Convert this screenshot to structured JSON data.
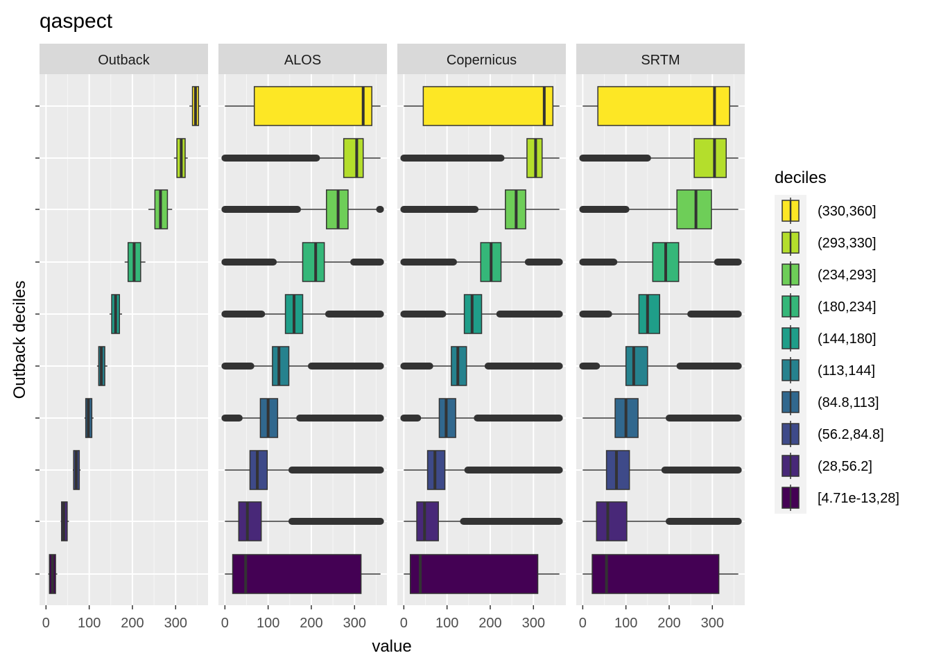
{
  "chart_data": {
    "type": "boxplot",
    "title": "qaspect",
    "xlabel": "value",
    "ylabel": "Outback deciles",
    "xlim": [
      -15,
      375
    ],
    "x_ticks": [
      0,
      100,
      200,
      300
    ],
    "legend": {
      "title": "deciles",
      "position": "right",
      "entries": [
        "(330,360]",
        "(293,330]",
        "(234,293]",
        "(180,234]",
        "(144,180]",
        "(113,144]",
        "(84.8,113]",
        "(56.2,84.8]",
        "(28,56.2]",
        "[4.71e-13,28]"
      ]
    },
    "deciles": [
      "[4.71e-13,28]",
      "(28,56.2]",
      "(56.2,84.8]",
      "(84.8,113]",
      "(113,144]",
      "(144,180]",
      "(180,234]",
      "(234,293]",
      "(293,330]",
      "(330,360]"
    ],
    "colors": [
      "#440154",
      "#482878",
      "#3E4A89",
      "#31688E",
      "#26828E",
      "#1F9E89",
      "#35B779",
      "#6ECE58",
      "#B4DE2C",
      "#FDE725"
    ],
    "panels": [
      {
        "name": "Outback",
        "boxes": [
          {
            "wlo": 5,
            "q1": 8,
            "med": 15,
            "q3": 22,
            "whi": 26
          },
          {
            "wlo": 34,
            "q1": 36,
            "med": 41,
            "q3": 49,
            "whi": 53
          },
          {
            "wlo": 62,
            "q1": 64,
            "med": 70,
            "q3": 77,
            "whi": 80
          },
          {
            "wlo": 89,
            "q1": 92,
            "med": 98,
            "q3": 106,
            "whi": 110
          },
          {
            "wlo": 118,
            "q1": 122,
            "med": 128,
            "q3": 136,
            "whi": 142
          },
          {
            "wlo": 147,
            "q1": 152,
            "med": 161,
            "q3": 170,
            "whi": 176
          },
          {
            "wlo": 182,
            "q1": 190,
            "med": 204,
            "q3": 219,
            "whi": 230
          },
          {
            "wlo": 237,
            "q1": 252,
            "med": 265,
            "q3": 281,
            "whi": 292
          },
          {
            "wlo": 296,
            "q1": 303,
            "med": 313,
            "q3": 322,
            "whi": 328
          },
          {
            "wlo": 332,
            "q1": 339,
            "med": 346,
            "q3": 353,
            "whi": 358
          }
        ]
      },
      {
        "name": "ALOS",
        "boxes": [
          {
            "wlo": 0,
            "q1": 18,
            "med": 48,
            "q3": 315,
            "whi": 360,
            "out_lo": [],
            "out_hi": []
          },
          {
            "wlo": 0,
            "q1": 32,
            "med": 52,
            "q3": 84,
            "whi": 155,
            "out_lo": [],
            "out_hi": [
              155,
              360
            ]
          },
          {
            "wlo": 0,
            "q1": 58,
            "med": 75,
            "q3": 98,
            "whi": 155,
            "out_lo": [],
            "out_hi": [
              155,
              360
            ]
          },
          {
            "wlo": 40,
            "q1": 82,
            "med": 100,
            "q3": 122,
            "whi": 173,
            "out_lo": [
              0,
              33
            ],
            "out_hi": [
              173,
              360
            ]
          },
          {
            "wlo": 60,
            "q1": 110,
            "med": 125,
            "q3": 148,
            "whi": 200,
            "out_lo": [
              0,
              60
            ],
            "out_hi": [
              200,
              360
            ]
          },
          {
            "wlo": 85,
            "q1": 140,
            "med": 160,
            "q3": 180,
            "whi": 240,
            "out_lo": [
              0,
              85
            ],
            "out_hi": [
              240,
              360
            ]
          },
          {
            "wlo": 115,
            "q1": 180,
            "med": 210,
            "q3": 230,
            "whi": 298,
            "out_lo": [
              0,
              112
            ],
            "out_hi": [
              298,
              360
            ]
          },
          {
            "wlo": 170,
            "q1": 235,
            "med": 262,
            "q3": 285,
            "whi": 355,
            "out_lo": [
              0,
              168
            ],
            "out_hi": [
              358,
              360
            ]
          },
          {
            "wlo": 210,
            "q1": 275,
            "med": 305,
            "q3": 320,
            "whi": 360,
            "out_lo": [
              0,
              212
            ],
            "out_hi": []
          },
          {
            "wlo": 0,
            "q1": 68,
            "med": 320,
            "q3": 340,
            "whi": 360,
            "out_lo": [],
            "out_hi": []
          }
        ]
      },
      {
        "name": "Copernicus",
        "boxes": [
          {
            "wlo": 0,
            "q1": 15,
            "med": 38,
            "q3": 310,
            "whi": 360,
            "out_lo": [],
            "out_hi": []
          },
          {
            "wlo": 0,
            "q1": 30,
            "med": 48,
            "q3": 80,
            "whi": 138,
            "out_lo": [],
            "out_hi": [
              138,
              360
            ]
          },
          {
            "wlo": 0,
            "q1": 55,
            "med": 72,
            "q3": 95,
            "whi": 148,
            "out_lo": [],
            "out_hi": [
              148,
              360
            ]
          },
          {
            "wlo": 35,
            "q1": 82,
            "med": 98,
            "q3": 120,
            "whi": 170,
            "out_lo": [
              0,
              32
            ],
            "out_hi": [
              170,
              360
            ]
          },
          {
            "wlo": 60,
            "q1": 110,
            "med": 125,
            "q3": 145,
            "whi": 195,
            "out_lo": [
              0,
              60
            ],
            "out_hi": [
              195,
              360
            ]
          },
          {
            "wlo": 90,
            "q1": 140,
            "med": 158,
            "q3": 180,
            "whi": 222,
            "out_lo": [
              0,
              90
            ],
            "out_hi": [
              222,
              360
            ]
          },
          {
            "wlo": 115,
            "q1": 178,
            "med": 202,
            "q3": 225,
            "whi": 288,
            "out_lo": [
              0,
              115
            ],
            "out_hi": [
              288,
              360
            ]
          },
          {
            "wlo": 165,
            "q1": 235,
            "med": 260,
            "q3": 282,
            "whi": 360,
            "out_lo": [
              0,
              165
            ],
            "out_hi": []
          },
          {
            "wlo": 225,
            "q1": 285,
            "med": 305,
            "q3": 320,
            "whi": 360,
            "out_lo": [
              0,
              225
            ],
            "out_hi": []
          },
          {
            "wlo": 0,
            "q1": 45,
            "med": 325,
            "q3": 345,
            "whi": 360,
            "out_lo": [],
            "out_hi": []
          }
        ]
      },
      {
        "name": "SRTM",
        "boxes": [
          {
            "wlo": 0,
            "q1": 22,
            "med": 55,
            "q3": 315,
            "whi": 360,
            "out_lo": [],
            "out_hi": []
          },
          {
            "wlo": 0,
            "q1": 32,
            "med": 58,
            "q3": 102,
            "whi": 200,
            "out_lo": [],
            "out_hi": [
              200,
              360
            ]
          },
          {
            "wlo": 0,
            "q1": 55,
            "med": 78,
            "q3": 108,
            "whi": 190,
            "out_lo": [],
            "out_hi": [
              190,
              360
            ]
          },
          {
            "wlo": 0,
            "q1": 75,
            "med": 100,
            "q3": 128,
            "whi": 200,
            "out_lo": [],
            "out_hi": [
              200,
              360
            ]
          },
          {
            "wlo": 38,
            "q1": 100,
            "med": 118,
            "q3": 150,
            "whi": 225,
            "out_lo": [
              0,
              32
            ],
            "out_hi": [
              225,
              360
            ]
          },
          {
            "wlo": 62,
            "q1": 130,
            "med": 150,
            "q3": 178,
            "whi": 250,
            "out_lo": [
              0,
              60
            ],
            "out_hi": [
              250,
              360
            ]
          },
          {
            "wlo": 75,
            "q1": 162,
            "med": 192,
            "q3": 222,
            "whi": 310,
            "out_lo": [
              0,
              72
            ],
            "out_hi": [
              312,
              360
            ]
          },
          {
            "wlo": 100,
            "q1": 218,
            "med": 262,
            "q3": 298,
            "whi": 360,
            "out_lo": [
              0,
              100
            ],
            "out_hi": []
          },
          {
            "wlo": 150,
            "q1": 258,
            "med": 305,
            "q3": 332,
            "whi": 360,
            "out_lo": [
              0,
              150
            ],
            "out_hi": []
          },
          {
            "wlo": 0,
            "q1": 35,
            "med": 305,
            "q3": 340,
            "whi": 360,
            "out_lo": [],
            "out_hi": []
          }
        ]
      }
    ]
  }
}
